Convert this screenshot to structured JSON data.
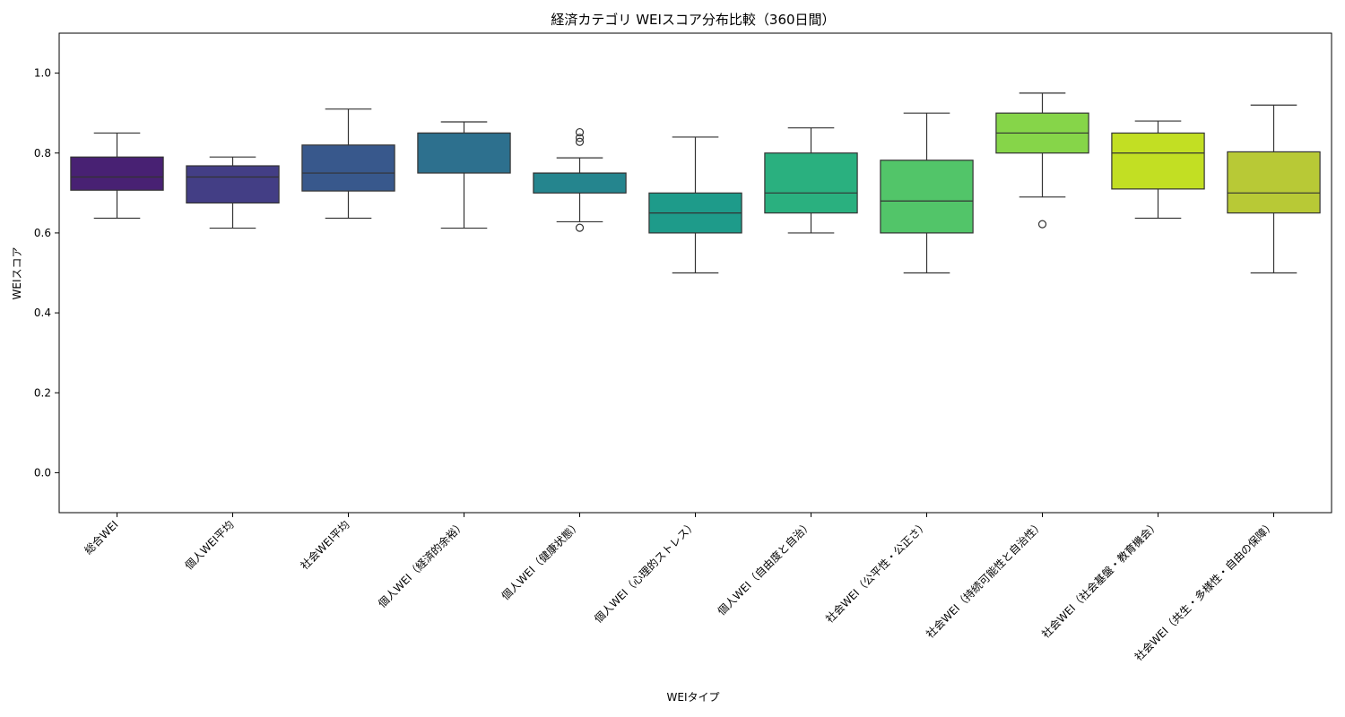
{
  "chart_data": {
    "type": "box",
    "title": "経済カテゴリ WEIスコア分布比較（360日間）",
    "xlabel": "WEIタイプ",
    "ylabel": "WEIスコア",
    "ylim": [
      -0.1,
      1.1
    ],
    "yticks": [
      "0.0",
      "0.2",
      "0.4",
      "0.6",
      "0.8",
      "1.0"
    ],
    "grid": false,
    "categories": [
      "総合WEI",
      "個人WEI平均",
      "社会WEI平均",
      "個人WEI（経済的余裕）",
      "個人WEI（健康状態）",
      "個人WEI（心理的ストレス）",
      "個人WEI（自由度と自治）",
      "社会WEI（公平性・公正さ）",
      "社会WEI（持続可能性と自治性）",
      "社会WEI（社会基盤・教育機会）",
      "社会WEI（共生・多様性・自由の保障）"
    ],
    "boxes": [
      {
        "whislo": 0.637,
        "q1": 0.707,
        "med": 0.74,
        "q3": 0.79,
        "whishi": 0.85,
        "fliers": [],
        "color": "#482173"
      },
      {
        "whislo": 0.612,
        "q1": 0.675,
        "med": 0.74,
        "q3": 0.768,
        "whishi": 0.79,
        "fliers": [],
        "color": "#433e85"
      },
      {
        "whislo": 0.637,
        "q1": 0.705,
        "med": 0.75,
        "q3": 0.82,
        "whishi": 0.91,
        "fliers": [],
        "color": "#38588c"
      },
      {
        "whislo": 0.612,
        "q1": 0.75,
        "med": 0.85,
        "q3": 0.85,
        "whishi": 0.878,
        "fliers": [],
        "color": "#2d708e"
      },
      {
        "whislo": 0.628,
        "q1": 0.7,
        "med": 0.75,
        "q3": 0.75,
        "whishi": 0.788,
        "fliers": [
          0.613,
          0.828,
          0.838,
          0.852
        ],
        "color": "#25858e"
      },
      {
        "whislo": 0.5,
        "q1": 0.6,
        "med": 0.65,
        "q3": 0.7,
        "whishi": 0.84,
        "fliers": [],
        "color": "#1e9b8a"
      },
      {
        "whislo": 0.6,
        "q1": 0.65,
        "med": 0.7,
        "q3": 0.8,
        "whishi": 0.863,
        "fliers": [],
        "color": "#2ab07f"
      },
      {
        "whislo": 0.5,
        "q1": 0.6,
        "med": 0.68,
        "q3": 0.782,
        "whishi": 0.9,
        "fliers": [],
        "color": "#52c569"
      },
      {
        "whislo": 0.69,
        "q1": 0.8,
        "med": 0.85,
        "q3": 0.9,
        "whishi": 0.95,
        "fliers": [
          0.622
        ],
        "color": "#86d549"
      },
      {
        "whislo": 0.637,
        "q1": 0.71,
        "med": 0.8,
        "q3": 0.85,
        "whishi": 0.88,
        "fliers": [],
        "color": "#c2df23"
      },
      {
        "whislo": 0.5,
        "q1": 0.65,
        "med": 0.7,
        "q3": 0.803,
        "whishi": 0.92,
        "fliers": [],
        "color": "#b8c936"
      }
    ]
  }
}
